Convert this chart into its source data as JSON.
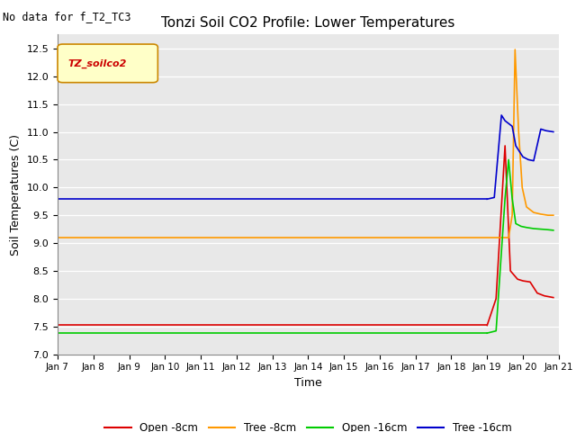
{
  "title": "Tonzi Soil CO2 Profile: Lower Temperatures",
  "no_data_text": "No data for f_T2_TC3",
  "legend_box_text": "TZ_soilco2",
  "xlabel": "Time",
  "ylabel": "Soil Temperatures (C)",
  "ylim": [
    7.0,
    12.75
  ],
  "yticks": [
    7.0,
    7.5,
    8.0,
    8.5,
    9.0,
    9.5,
    10.0,
    10.5,
    11.0,
    11.5,
    12.0,
    12.5
  ],
  "plot_bg_color": "#e8e8e8",
  "fig_bg_color": "#ffffff",
  "series": {
    "open_8cm": {
      "label": "Open -8cm",
      "color": "#dd0000",
      "flat_value": 7.52,
      "flat_end_day": 19.0,
      "spike_points": [
        [
          19.0,
          7.52
        ],
        [
          19.25,
          8.0
        ],
        [
          19.5,
          10.75
        ],
        [
          19.65,
          8.5
        ],
        [
          19.85,
          8.35
        ],
        [
          20.0,
          8.32
        ],
        [
          20.2,
          8.3
        ],
        [
          20.4,
          8.1
        ],
        [
          20.6,
          8.05
        ],
        [
          20.85,
          8.02
        ]
      ]
    },
    "tree_8cm": {
      "label": "Tree -8cm",
      "color": "#ff9900",
      "flat_value": 9.1,
      "flat_end_day": 19.6,
      "spike_points": [
        [
          19.6,
          9.1
        ],
        [
          19.7,
          9.5
        ],
        [
          19.78,
          12.48
        ],
        [
          19.88,
          11.0
        ],
        [
          19.98,
          10.0
        ],
        [
          20.1,
          9.65
        ],
        [
          20.3,
          9.55
        ],
        [
          20.5,
          9.52
        ],
        [
          20.7,
          9.5
        ],
        [
          20.85,
          9.5
        ]
      ]
    },
    "open_16cm": {
      "label": "Open -16cm",
      "color": "#00cc00",
      "flat_value": 7.38,
      "flat_end_day": 19.0,
      "spike_points": [
        [
          19.0,
          7.38
        ],
        [
          19.25,
          7.42
        ],
        [
          19.5,
          9.8
        ],
        [
          19.6,
          10.5
        ],
        [
          19.7,
          9.8
        ],
        [
          19.8,
          9.35
        ],
        [
          19.95,
          9.3
        ],
        [
          20.1,
          9.28
        ],
        [
          20.3,
          9.26
        ],
        [
          20.5,
          9.25
        ],
        [
          20.7,
          9.24
        ],
        [
          20.85,
          9.23
        ]
      ]
    },
    "tree_16cm": {
      "label": "Tree -16cm",
      "color": "#0000cc",
      "flat_value": 9.79,
      "flat_end_day": 19.0,
      "spike_points": [
        [
          19.0,
          9.79
        ],
        [
          19.2,
          9.82
        ],
        [
          19.4,
          11.3
        ],
        [
          19.5,
          11.2
        ],
        [
          19.6,
          11.15
        ],
        [
          19.7,
          11.1
        ],
        [
          19.8,
          10.75
        ],
        [
          19.9,
          10.65
        ],
        [
          20.0,
          10.55
        ],
        [
          20.15,
          10.5
        ],
        [
          20.3,
          10.48
        ],
        [
          20.5,
          11.05
        ],
        [
          20.65,
          11.02
        ],
        [
          20.85,
          11.0
        ]
      ]
    }
  },
  "x_start": 7,
  "x_end": 21,
  "xtick_positions": [
    7,
    8,
    9,
    10,
    11,
    12,
    13,
    14,
    15,
    16,
    17,
    18,
    19,
    20,
    21
  ],
  "xtick_labels": [
    "Jan 7",
    "Jan 8",
    "Jan 9",
    "Jan 10",
    "Jan 11",
    "Jan 12",
    "Jan 13",
    "Jan 14",
    "Jan 15",
    "Jan 16",
    "Jan 17",
    "Jan 18",
    "Jan 19",
    "Jan 20",
    "Jan 21"
  ]
}
